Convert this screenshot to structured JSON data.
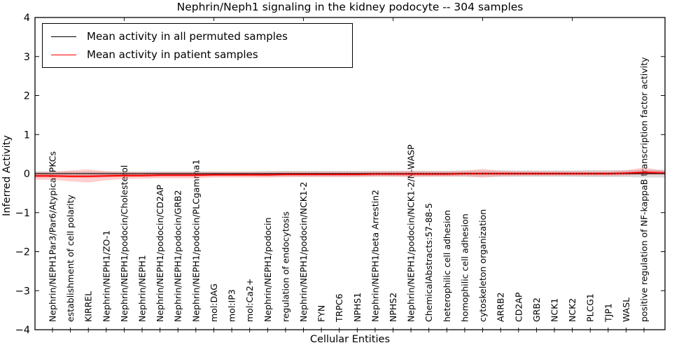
{
  "title": "Nephrin/Neph1 signaling in the kidney podocyte -- 304 samples",
  "axes": {
    "x_label": "Cellular Entities",
    "y_label": "Inferred Activity",
    "y_tick_labels": [
      "4",
      "3",
      "2",
      "1",
      "0",
      "−1",
      "−2",
      "−3",
      "−4"
    ],
    "y_tick_values": [
      4,
      3,
      2,
      1,
      0,
      -1,
      -2,
      -3,
      -4
    ]
  },
  "legend": {
    "items": [
      {
        "label": "Mean activity in all permuted samples",
        "color": "#000000"
      },
      {
        "label": "Mean activity in patient samples",
        "color": "#ff0000"
      }
    ]
  },
  "colors": {
    "patient_line": "#ff0000",
    "patient_band": "#ff4646",
    "permuted_line": "#000000",
    "permuted_band": "#999999",
    "zero_line": "#000000"
  },
  "chart_data": {
    "type": "line",
    "title": "Nephrin/Neph1 signaling in the kidney podocyte -- 304 samples",
    "xlabel": "Cellular Entities",
    "ylabel": "Inferred Activity",
    "ylim": [
      -4,
      4
    ],
    "n_samples": 304,
    "grid": false,
    "legend_position": "upper left",
    "zero_line_style": "dotted",
    "top_axis_tick_data_positions": [
      5,
      10,
      15,
      20,
      25,
      30
    ],
    "categories": [
      "Nephrin/NEPH1Par3/Par6/Atypical PKCs",
      "establishment of cell polarity",
      "KIRREL",
      "Nephrin/NEPH1/ZO-1",
      "Nephrin/NEPH1/podocin/Cholesterol",
      "Nephrin/NEPH1",
      "Nephrin/NEPH1/podocin/CD2AP",
      "Nephrin/NEPH1/podocin/GRB2",
      "Nephrin/NEPH1/podocin/PLCgamma1",
      "mol:DAG",
      "mol:IP3",
      "mol:Ca2+",
      "Nephrin/NEPH1/podocin",
      "regulation of endocytosis",
      "Nephrin/NEPH1/podocin/NCK1-2",
      "FYN",
      "TRPC6",
      "NPHS1",
      "Nephrin/NEPH1/beta Arrestin2",
      "NPHS2",
      "Nephrin/NEPH1/podocin/NCK1-2/N-WASP",
      "ChemicalAbstracts:57-88-5",
      "heterophilic cell adhesion",
      "homophilic cell adhesion",
      "cytoskeleton organization",
      "ARRB2",
      "CD2AP",
      "GRB2",
      "NCK1",
      "NCK2",
      "PLCG1",
      "TJP1",
      "WASL",
      "positive regulation of NF-kappaB transcription factor activity"
    ],
    "series": [
      {
        "name": "Mean activity in all permuted samples",
        "color": "#000000",
        "values": [
          0,
          0,
          0,
          0,
          0,
          0,
          0,
          0,
          0,
          0,
          0,
          0,
          0,
          0,
          0,
          0,
          0,
          0,
          0,
          0,
          0,
          0,
          0,
          0,
          0,
          0,
          0,
          0,
          0,
          0,
          0,
          0,
          0,
          0
        ],
        "band_halfwidth": [
          0.055,
          0.055,
          0.055,
          0.055,
          0.055,
          0.055,
          0.055,
          0.055,
          0.055,
          0.055,
          0.055,
          0.055,
          0.07,
          0.07,
          0.07,
          0.07,
          0.07,
          0.07,
          0.07,
          0.07,
          0.07,
          0.07,
          0.07,
          0.08,
          0.08,
          0.08,
          0.08,
          0.08,
          0.08,
          0.08,
          0.09,
          0.09,
          0.09,
          0.1
        ]
      },
      {
        "name": "Mean activity in patient samples",
        "color": "#ff0000",
        "values": [
          -0.06,
          -0.07,
          -0.07,
          -0.06,
          -0.05,
          -0.05,
          -0.04,
          -0.04,
          -0.04,
          -0.03,
          -0.03,
          -0.03,
          -0.03,
          -0.02,
          -0.02,
          -0.02,
          -0.02,
          -0.02,
          -0.01,
          -0.01,
          -0.01,
          -0.01,
          -0.01,
          0,
          0,
          0,
          0,
          0,
          0,
          0,
          0,
          0,
          0.01,
          0.03
        ],
        "band_upper": [
          0.1,
          0.15,
          0.18,
          0.12,
          0.09,
          0.08,
          0.08,
          0.08,
          0.08,
          0.07,
          0.07,
          0.07,
          0.07,
          0.07,
          0.07,
          0.07,
          0.07,
          0.07,
          0.07,
          0.07,
          0.08,
          0.07,
          0.07,
          0.07,
          0.12,
          0.07,
          0.06,
          0.06,
          0.06,
          0.06,
          0.06,
          0.06,
          0.07,
          0.13
        ],
        "band_lower": [
          0.1,
          0.13,
          0.16,
          0.11,
          0.09,
          0.08,
          0.08,
          0.08,
          0.08,
          0.07,
          0.07,
          0.07,
          0.07,
          0.07,
          0.07,
          0.07,
          0.07,
          0.07,
          0.07,
          0.07,
          0.08,
          0.07,
          0.07,
          0.07,
          0.1,
          0.07,
          0.06,
          0.06,
          0.06,
          0.06,
          0.06,
          0.06,
          0.06,
          0.06
        ],
        "core_halfwidth": 0.035
      }
    ]
  }
}
